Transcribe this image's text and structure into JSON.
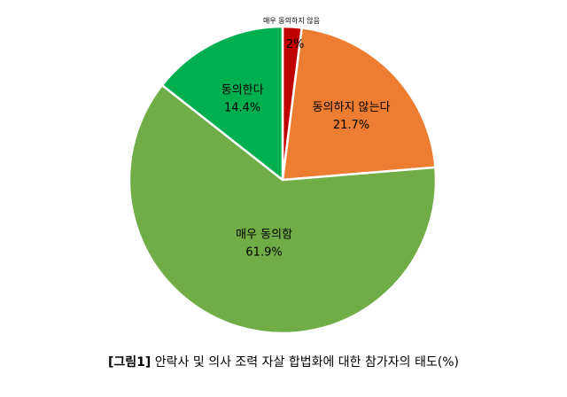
{
  "chart_data": {
    "type": "pie",
    "start_angle_deg": 0,
    "direction": "clockwise",
    "slices": [
      {
        "label": "매우 동의하지 않음",
        "value": 2,
        "display": "2%",
        "color": "#c00000"
      },
      {
        "label": "동의하지 않는다",
        "value": 21.7,
        "display": "21.7%",
        "color": "#ed7d31"
      },
      {
        "label": "매우 동의함",
        "value": 61.9,
        "display": "61.9%",
        "color": "#70ad47"
      },
      {
        "label": "동의한다",
        "value": 14.4,
        "display": "14.4%",
        "color": "#00b050"
      }
    ]
  },
  "caption": {
    "figure_number": "[그림1]",
    "text": "안락사 및 의사 조력 자살 합법화에 대한 참가자의 태도(%)"
  }
}
